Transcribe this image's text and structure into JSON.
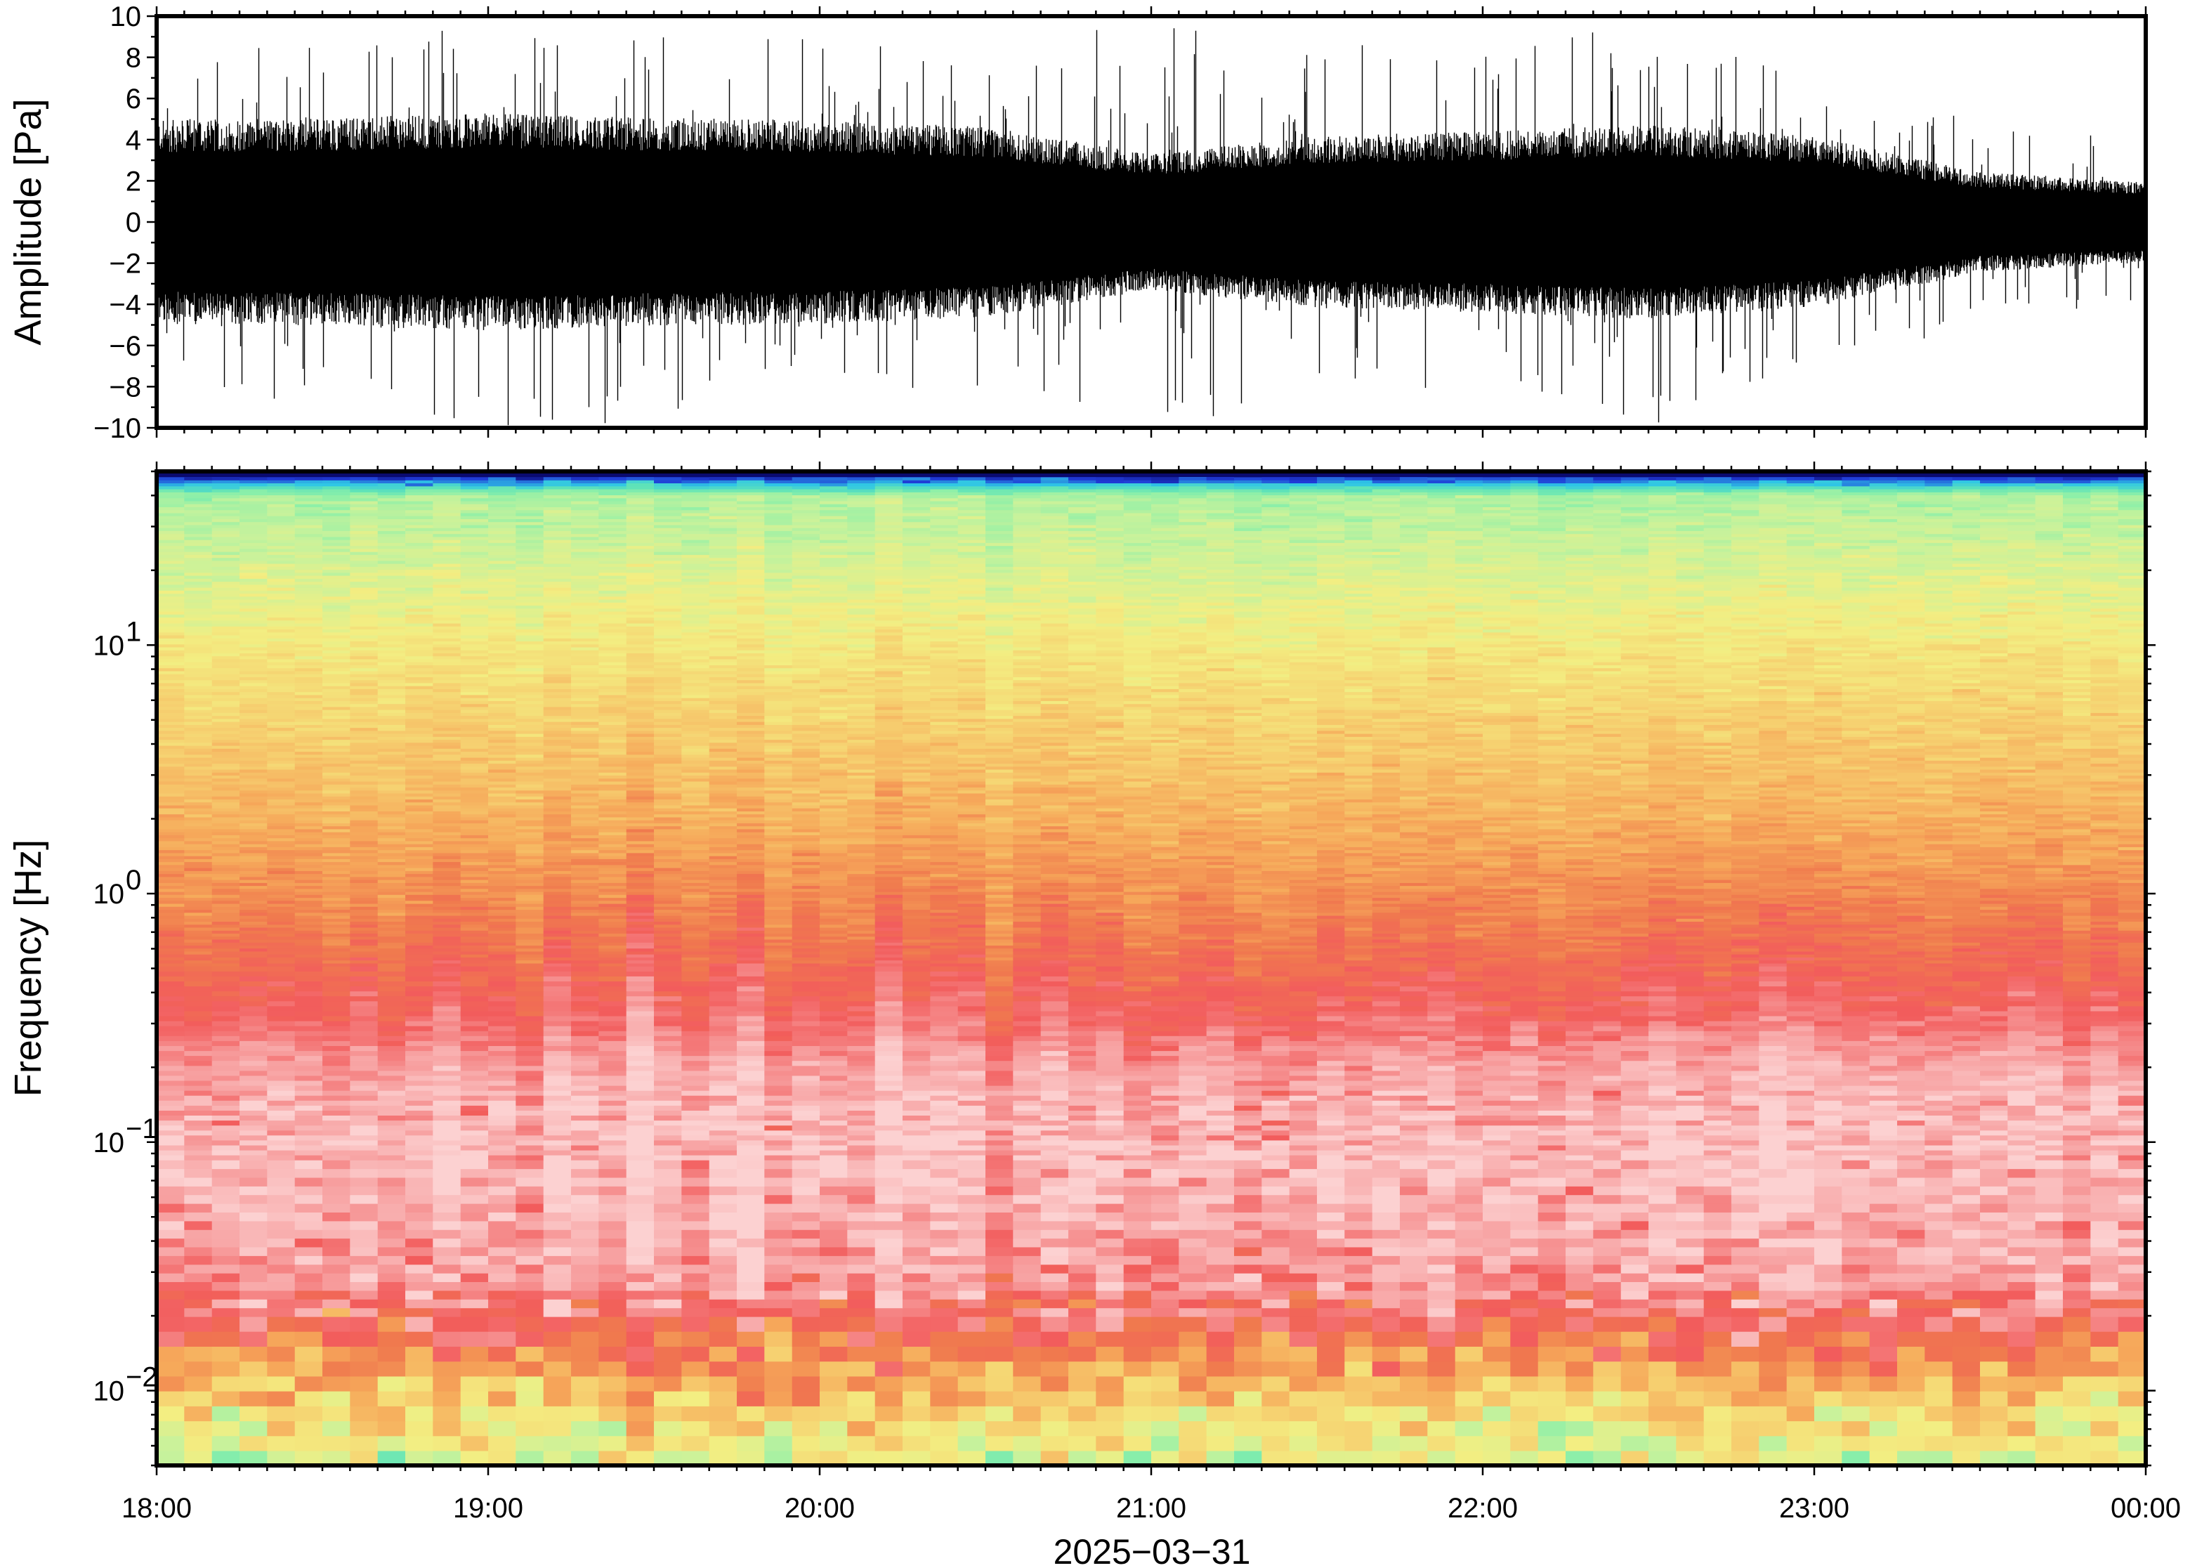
{
  "chart_data": [
    {
      "type": "line",
      "panel": "waveform",
      "ylabel": "Amplitude [Pa]",
      "ylim": [
        -10,
        10
      ],
      "y_ticks": [
        10,
        8,
        6,
        4,
        2,
        0,
        -2,
        -4,
        -6,
        -8,
        -10
      ],
      "x_range": [
        "2025-03-31T18:00",
        "2025-04-01T00:00"
      ],
      "line_color": "#000000",
      "envelope_hours": [
        18.0,
        18.5,
        19.0,
        19.5,
        20.0,
        20.5,
        21.0,
        21.5,
        22.0,
        22.5,
        23.0,
        23.5,
        24.0
      ],
      "envelope_pa": [
        4.5,
        4.6,
        4.8,
        4.6,
        4.5,
        4.2,
        3.0,
        3.8,
        4.0,
        4.3,
        3.8,
        2.2,
        1.8
      ],
      "peak_pa": [
        8,
        9,
        10,
        10,
        9,
        8,
        10,
        9,
        8,
        10,
        7,
        5,
        4
      ]
    },
    {
      "type": "heatmap",
      "panel": "spectrogram",
      "ylabel": "Frequency [Hz]",
      "yscale": "log",
      "ylim_hz": [
        0.005,
        50
      ],
      "y_ticks": [
        {
          "base": "10",
          "exp": "1",
          "value": 10
        },
        {
          "base": "10",
          "exp": "0",
          "value": 1
        },
        {
          "base": "10",
          "exp": "−1",
          "value": 0.1
        },
        {
          "base": "10",
          "exp": "−2",
          "value": 0.01
        }
      ],
      "frequency_hz": [
        0.005,
        0.007,
        0.01,
        0.015,
        0.02,
        0.03,
        0.05,
        0.1,
        0.2,
        0.3,
        0.5,
        1,
        2,
        5,
        10,
        20,
        40,
        45,
        50
      ],
      "relative_power": [
        0.45,
        0.52,
        0.62,
        0.75,
        0.86,
        0.92,
        0.95,
        0.97,
        0.93,
        0.86,
        0.8,
        0.72,
        0.65,
        0.58,
        0.52,
        0.45,
        0.38,
        0.15,
        0.0
      ],
      "colormap": [
        "#0a0a6e",
        "#1f3ad6",
        "#2ec5e6",
        "#5fe3b8",
        "#8ff0a8",
        "#c9f29b",
        "#f3ee82",
        "#f6d070",
        "#f6a85a",
        "#f07a4e",
        "#f25c5c",
        "#f7a0a0",
        "#fcd1d1"
      ],
      "x_range": [
        "2025-03-31T18:00",
        "2025-04-01T00:00"
      ]
    }
  ],
  "x_axis": {
    "tick_labels": [
      "18:00",
      "19:00",
      "20:00",
      "21:00",
      "22:00",
      "23:00",
      "00:00"
    ],
    "date_label": "2025−03−31"
  }
}
